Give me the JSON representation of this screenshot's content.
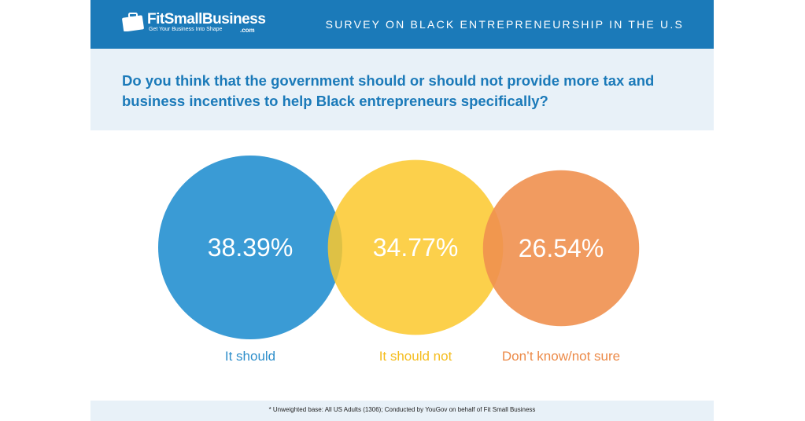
{
  "header": {
    "logo_name": "FitSmallBusiness",
    "logo_tagline": "Get Your Business Into Shape",
    "logo_suffix": ".com",
    "title": "SURVEY ON BLACK ENTREPRENEURSHIP IN THE U.S"
  },
  "question": "Do you think that the government should or should not provide more tax and business incentives to help Black entrepreneurs specifically?",
  "chart_data": {
    "type": "bubble",
    "categories": [
      "It should",
      "It should not",
      "Don’t know/not sure"
    ],
    "values": [
      38.39,
      34.77,
      26.54
    ],
    "labels": [
      "38.39%",
      "34.77%",
      "26.54%"
    ],
    "colors": [
      "#3a9bd5",
      "#fcc82b",
      "#f0904f"
    ],
    "label_colors": [
      "#2f8fcb",
      "#f5bd1f",
      "#ec8a48"
    ]
  },
  "footer": "* Unweighted base: All US Adults (1306); Conducted by YouGov on behalf of Fit Small Business"
}
